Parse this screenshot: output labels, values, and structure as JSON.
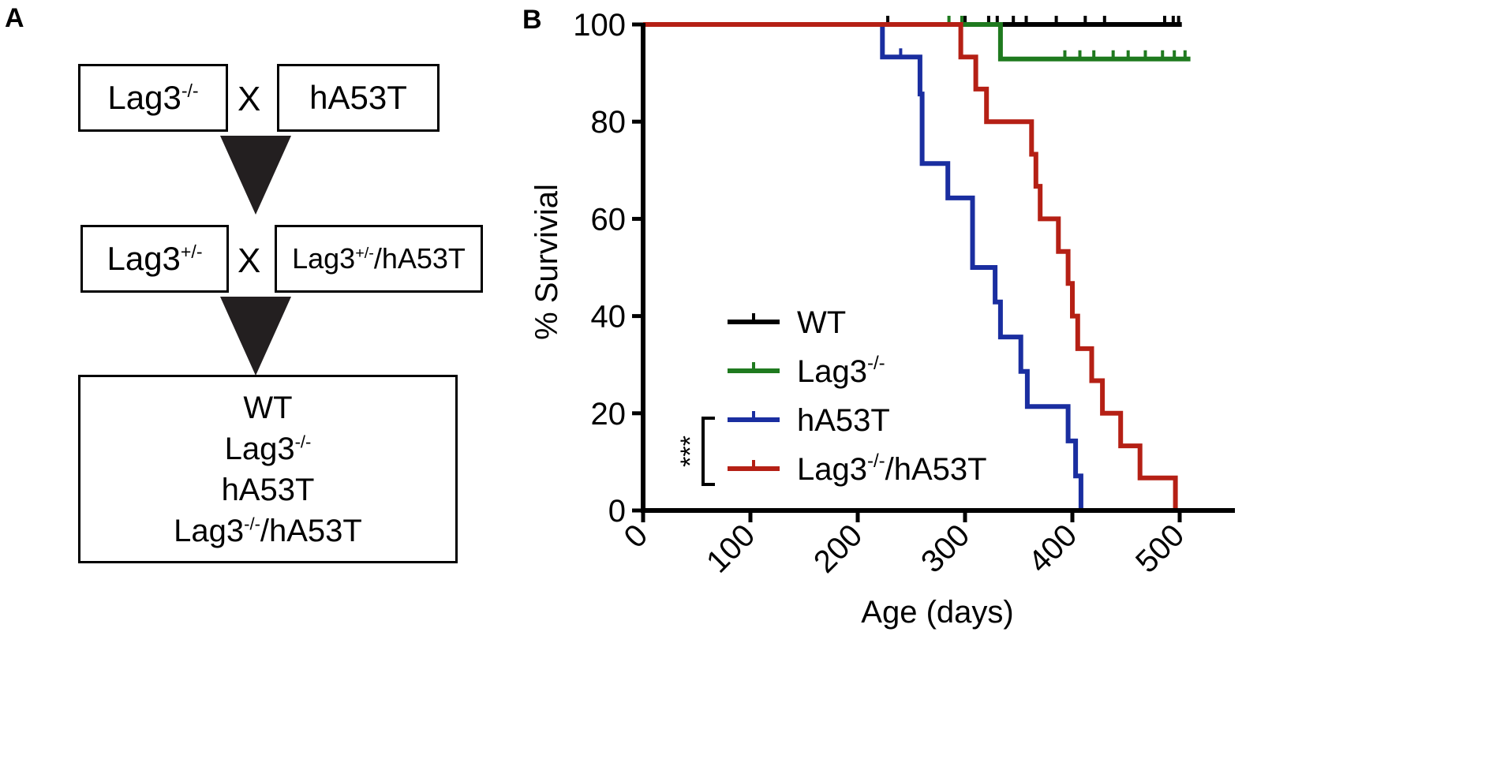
{
  "panel_a": {
    "label": "A",
    "row1": {
      "left_base": "Lag3",
      "left_sup": "-/-",
      "cross": "X",
      "right": "hA53T"
    },
    "row2": {
      "left_base": "Lag3",
      "left_sup": "+/-",
      "cross": "X",
      "right_base": "Lag3",
      "right_sup": "+/-",
      "right_rest": "/hA53T"
    },
    "result": [
      {
        "base": "WT",
        "sup": "",
        "rest": ""
      },
      {
        "base": "Lag3",
        "sup": "-/-",
        "rest": ""
      },
      {
        "base": "hA53T",
        "sup": "",
        "rest": ""
      },
      {
        "base": "Lag3",
        "sup": "-/-",
        "rest": "/hA53T"
      }
    ]
  },
  "chart_data": {
    "panel_label": "B",
    "type": "line",
    "subtype": "kaplan-meier survival",
    "xlabel": "Age (days)",
    "ylabel": "% Survivial",
    "xlim": [
      0,
      550
    ],
    "ylim": [
      0,
      100
    ],
    "xticks": [
      "0",
      "100",
      "200",
      "300",
      "400",
      "500"
    ],
    "yticks": [
      "0",
      "20",
      "40",
      "60",
      "80",
      "100"
    ],
    "significance": "***",
    "series": [
      {
        "name": "WT",
        "name_base": "WT",
        "name_sup": "",
        "name_rest": "",
        "color": "#000000",
        "steps": [
          [
            0,
            100
          ],
          [
            502,
            100
          ]
        ],
        "censor": [
          [
            228,
            100
          ],
          [
            300,
            100
          ],
          [
            322,
            100
          ],
          [
            330,
            100
          ],
          [
            345,
            100
          ],
          [
            357,
            100
          ],
          [
            385,
            100
          ],
          [
            412,
            100
          ],
          [
            430,
            100
          ],
          [
            486,
            100
          ],
          [
            494,
            100
          ],
          [
            499,
            100
          ]
        ]
      },
      {
        "name": "Lag3-/-",
        "name_base": "Lag3",
        "name_sup": "-/-",
        "name_rest": "",
        "color": "#1f7a1f",
        "steps": [
          [
            0,
            100
          ],
          [
            333,
            100
          ],
          [
            333,
            92.9
          ],
          [
            510,
            92.9
          ]
        ],
        "censor": [
          [
            285,
            100
          ],
          [
            297,
            100
          ],
          [
            393,
            92.9
          ],
          [
            407,
            92.9
          ],
          [
            420,
            92.9
          ],
          [
            438,
            92.9
          ],
          [
            452,
            92.9
          ],
          [
            468,
            92.9
          ],
          [
            484,
            92.9
          ],
          [
            495,
            92.9
          ],
          [
            505,
            92.9
          ]
        ]
      },
      {
        "name": "hA53T",
        "name_base": "hA53T",
        "name_sup": "",
        "name_rest": "",
        "color": "#1a2ea0",
        "steps": [
          [
            0,
            100
          ],
          [
            223,
            100
          ],
          [
            223,
            93.3
          ],
          [
            258,
            93.3
          ],
          [
            258,
            85.7
          ],
          [
            260,
            85.7
          ],
          [
            260,
            71.4
          ],
          [
            284,
            71.4
          ],
          [
            284,
            64.3
          ],
          [
            307,
            64.3
          ],
          [
            307,
            50
          ],
          [
            328,
            50
          ],
          [
            328,
            42.9
          ],
          [
            333,
            42.9
          ],
          [
            333,
            35.7
          ],
          [
            352,
            35.7
          ],
          [
            352,
            28.6
          ],
          [
            358,
            28.6
          ],
          [
            358,
            21.4
          ],
          [
            396,
            21.4
          ],
          [
            396,
            14.3
          ],
          [
            403,
            14.3
          ],
          [
            403,
            7.1
          ],
          [
            408,
            7.1
          ],
          [
            408,
            0
          ]
        ],
        "censor": [
          [
            240,
            93.3
          ]
        ]
      },
      {
        "name": "Lag3-/-/hA53T",
        "name_base": "Lag3",
        "name_sup": "-/-",
        "name_rest": "/hA53T",
        "color": "#b52015",
        "steps": [
          [
            0,
            100
          ],
          [
            296,
            100
          ],
          [
            296,
            93.3
          ],
          [
            310,
            93.3
          ],
          [
            310,
            86.7
          ],
          [
            320,
            86.7
          ],
          [
            320,
            80
          ],
          [
            362,
            80
          ],
          [
            362,
            73.3
          ],
          [
            366,
            73.3
          ],
          [
            366,
            66.7
          ],
          [
            370,
            66.7
          ],
          [
            370,
            60
          ],
          [
            387,
            60
          ],
          [
            387,
            53.3
          ],
          [
            396,
            53.3
          ],
          [
            396,
            46.7
          ],
          [
            400,
            46.7
          ],
          [
            400,
            40
          ],
          [
            405,
            40
          ],
          [
            405,
            33.3
          ],
          [
            418,
            33.3
          ],
          [
            418,
            26.7
          ],
          [
            428,
            26.7
          ],
          [
            428,
            20
          ],
          [
            445,
            20
          ],
          [
            445,
            13.3
          ],
          [
            463,
            13.3
          ],
          [
            463,
            6.7
          ],
          [
            496,
            6.7
          ],
          [
            496,
            0
          ],
          [
            500,
            0
          ]
        ],
        "censor": []
      }
    ]
  }
}
